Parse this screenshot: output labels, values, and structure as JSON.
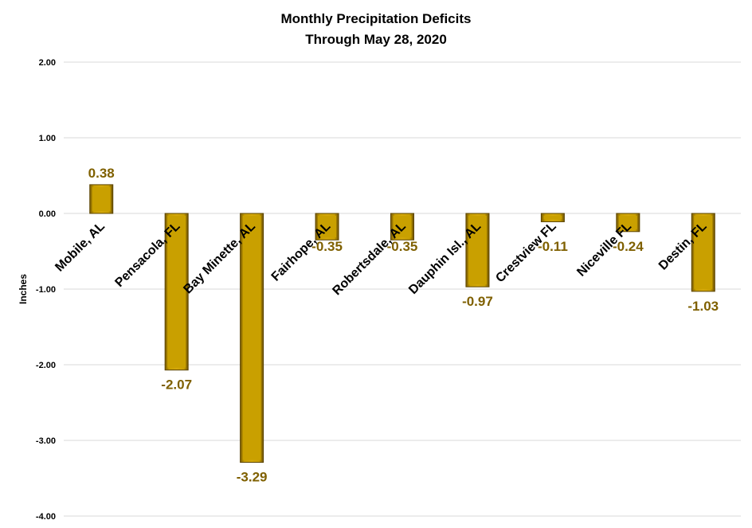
{
  "chart_data": {
    "type": "bar",
    "title": [
      "Monthly Precipitation Deficits",
      "Through May 28, 2020"
    ],
    "xlabel": "",
    "ylabel": "Inches",
    "ylim": [
      -4,
      2
    ],
    "yticks": [
      "2.00",
      "1.00",
      "0.00",
      "-1.00",
      "-2.00",
      "-3.00",
      "-4.00"
    ],
    "grid": true,
    "categories": [
      "Mobile, AL",
      "Pensacola, FL",
      "Bay Minette, AL",
      "Fairhope, AL",
      "Robertsdale, AL",
      "Dauphin Isl., AL",
      "Crestview FL",
      "Niceville FL",
      "Destin, FL"
    ],
    "values": [
      0.38,
      -2.07,
      -3.29,
      -0.35,
      -0.35,
      -0.97,
      -0.11,
      -0.24,
      -1.03
    ],
    "data_labels": [
      "0.38",
      "-2.07",
      "-3.29",
      "-0.35",
      "-0.35",
      "-0.97",
      "-0.11",
      "-0.24",
      "-1.03"
    ],
    "bar_color": "#C9A000",
    "label_color": "#7F6000"
  }
}
